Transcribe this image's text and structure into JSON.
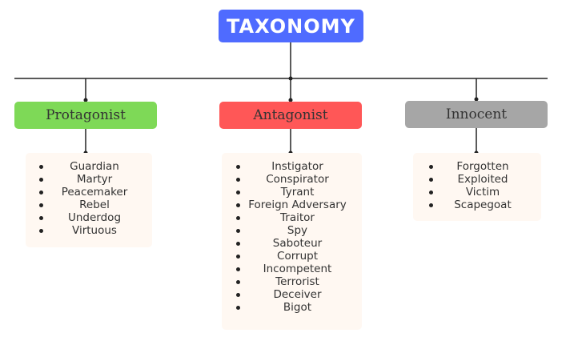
{
  "title": "TAXONOMY",
  "colors": {
    "title_bg": "#4f6bff",
    "protagonist": "#7ed957",
    "antagonist": "#ff5757",
    "innocent": "#a6a6a6",
    "card_bg": "#fff8f2"
  },
  "categories": [
    {
      "label": "Protagonist",
      "items": [
        "Guardian",
        "Martyr",
        "Peacemaker",
        "Rebel",
        "Underdog",
        "Virtuous"
      ]
    },
    {
      "label": "Antagonist",
      "items": [
        "Instigator",
        "Conspirator",
        "Tyrant",
        "Foreign Adversary",
        "Traitor",
        "Spy",
        "Saboteur",
        "Corrupt",
        "Incompetent",
        "Terrorist",
        "Deceiver",
        "Bigot"
      ]
    },
    {
      "label": "Innocent",
      "items": [
        "Forgotten",
        "Exploited",
        "Victim",
        "Scapegoat"
      ]
    }
  ]
}
